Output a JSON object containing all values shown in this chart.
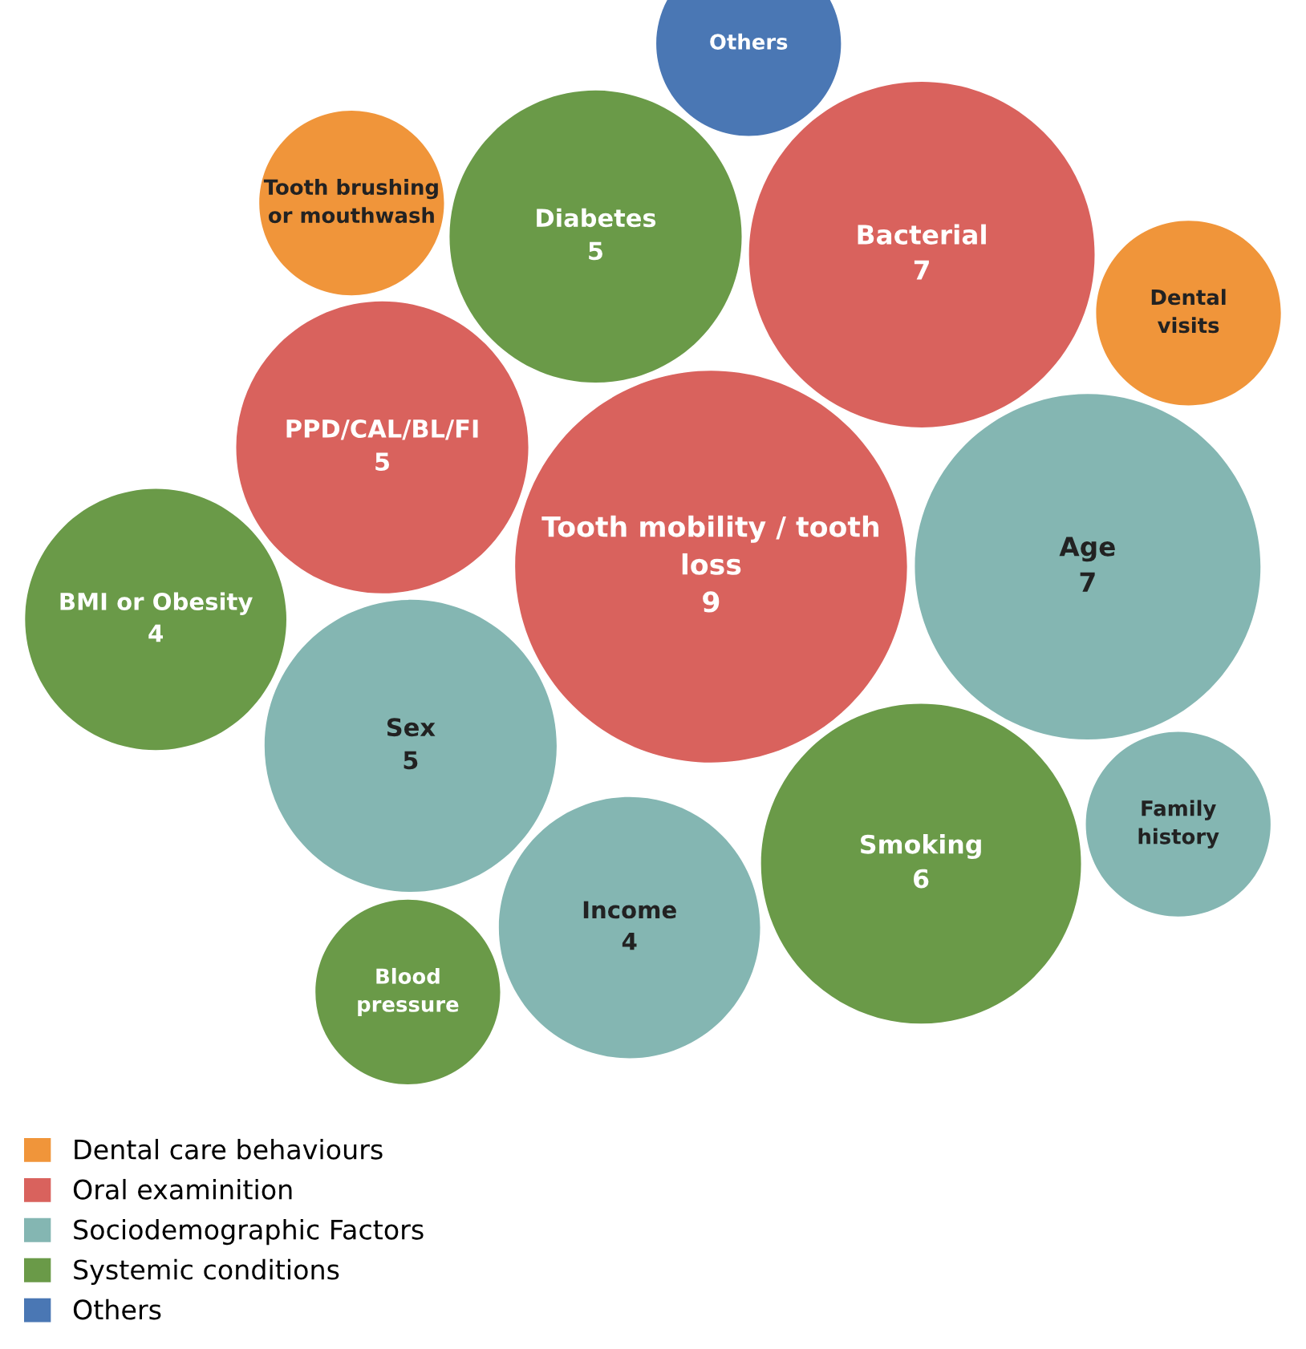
{
  "chart_data": {
    "type": "other",
    "data_labels": true,
    "legend": "bottom left",
    "categories": [
      "Tooth mobility / tooth\nloss",
      "Age",
      "Bacterial",
      "Smoking",
      "Diabetes",
      "PPD/CAL/BL/FI",
      "Sex",
      "Income",
      "BMI or Obesity",
      "Tooth brushing\nor mouthwash",
      "Family\nhistory",
      "Dental\nvisits",
      "Blood\npressure",
      "Others"
    ],
    "colors": [
      "#d9625d",
      "#84b6b2",
      "#d9625d",
      "#6a9a48",
      "#6a9a48",
      "#d9625d",
      "#84b6b2",
      "#84b6b2",
      "#6a9a48",
      "#f0953a",
      "#84b6b2",
      "#f0953a",
      "#6a9a48",
      "#4a77b4"
    ],
    "series": [
      {
        "name": "Dental care behaviours",
        "color": "#f0953a",
        "values": [
          null,
          null,
          null,
          null,
          null,
          null,
          null,
          null,
          null,
          null,
          null,
          null,
          null,
          null
        ]
      },
      {
        "name": "Oral examinition",
        "color": "#d9625d",
        "values": [
          9,
          null,
          7,
          null,
          null,
          5,
          null,
          null,
          null,
          null,
          null,
          null,
          null,
          null
        ]
      },
      {
        "name": "Sociodemographic Factors",
        "color": "#84b6b2",
        "values": [
          null,
          7,
          null,
          null,
          null,
          null,
          5,
          4,
          null,
          null,
          null,
          null,
          null,
          null
        ]
      },
      {
        "name": "Systemic conditions",
        "color": "#6a9a48",
        "values": [
          null,
          null,
          null,
          6,
          5,
          null,
          null,
          null,
          4,
          null,
          null,
          null,
          null,
          null
        ]
      },
      {
        "name": "Others",
        "color": "#4a77b4",
        "values": [
          null,
          null,
          null,
          null,
          null,
          null,
          null,
          null,
          null,
          null,
          null,
          null,
          null,
          null
        ]
      }
    ]
  }
}
